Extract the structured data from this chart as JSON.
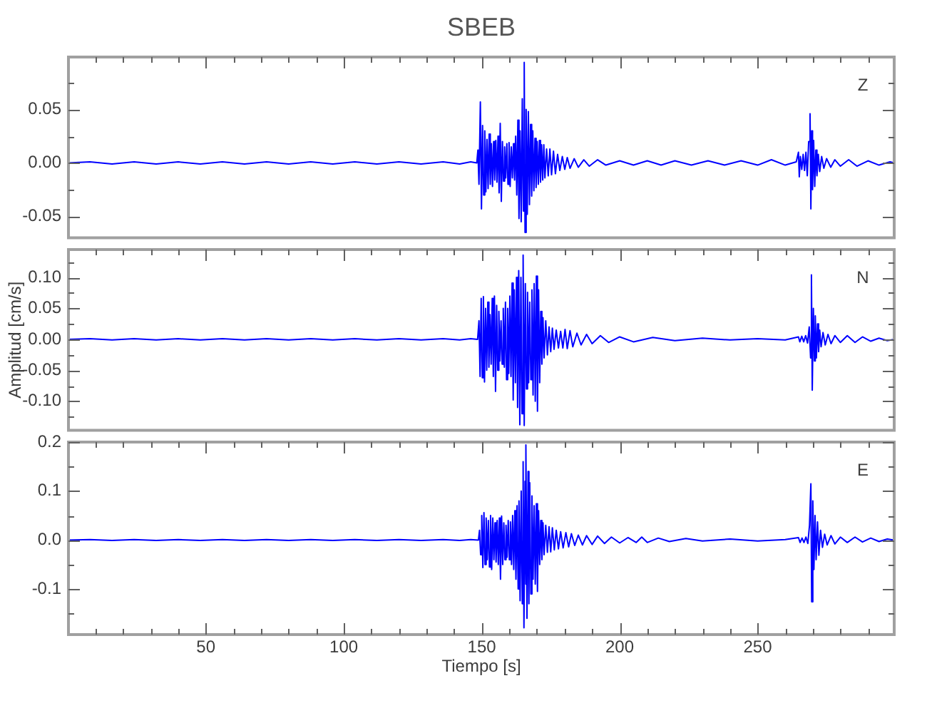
{
  "chart_data": [
    {
      "type": "line",
      "title": "SBEB",
      "annotations": [
        "Z"
      ],
      "tick_labels": "y",
      "xlim": [
        0.2,
        299.5
      ],
      "ylim": [
        -0.07,
        0.099
      ],
      "xticks": [
        {
          "value": 10,
          "label": null
        },
        {
          "value": 20,
          "label": null
        },
        {
          "value": 30,
          "label": null
        },
        {
          "value": 40,
          "label": null
        },
        50,
        {
          "value": 60,
          "label": null
        },
        {
          "value": 70,
          "label": null
        },
        {
          "value": 80,
          "label": null
        },
        {
          "value": 90,
          "label": null
        },
        100,
        {
          "value": 110,
          "label": null
        },
        {
          "value": 120,
          "label": null
        },
        {
          "value": 130,
          "label": null
        },
        {
          "value": 140,
          "label": null
        },
        150,
        {
          "value": 160,
          "label": null
        },
        {
          "value": 170,
          "label": null
        },
        {
          "value": 180,
          "label": null
        },
        {
          "value": 190,
          "label": null
        },
        200,
        {
          "value": 210,
          "label": null
        },
        {
          "value": 220,
          "label": null
        },
        {
          "value": 230,
          "label": null
        },
        {
          "value": 240,
          "label": null
        },
        250,
        {
          "value": 260,
          "label": null
        },
        {
          "value": 270,
          "label": null
        },
        {
          "value": 280,
          "label": null
        },
        {
          "value": 290,
          "label": null
        }
      ],
      "yticks": [
        -0.05,
        {
          "value": -0.025,
          "label": null
        },
        {
          "value": 0,
          "label": "0.00"
        },
        {
          "value": 0.025,
          "label": null
        },
        0.05,
        {
          "value": 0.075,
          "label": null
        }
      ],
      "series": [
        {
          "color": "#0000ff",
          "x": [
            0.2,
            8,
            16,
            24,
            32,
            40,
            48,
            56,
            64,
            72,
            80,
            88,
            96,
            104,
            112,
            120,
            128,
            136,
            142,
            146,
            148.2,
            148.6,
            149.0,
            149.5,
            149.9,
            150.3,
            150.7,
            151.1,
            151.5,
            151.9,
            152.3,
            152.7,
            153.1,
            153.5,
            153.9,
            154.3,
            154.7,
            155.1,
            155.5,
            155.9,
            156.3,
            156.7,
            157.1,
            157.5,
            157.9,
            158.3,
            158.7,
            159.1,
            159.5,
            159.9,
            160.3,
            160.7,
            161.1,
            161.5,
            161.9,
            162.3,
            162.7,
            163.1,
            163.5,
            163.9,
            164.3,
            164.7,
            165.1,
            165.4,
            165.7,
            166.1,
            166.5,
            166.9,
            167.3,
            167.7,
            168.1,
            168.5,
            168.9,
            169.3,
            169.7,
            170.1,
            170.5,
            170.9,
            171.3,
            171.7,
            172.1,
            172.5,
            172.9,
            173.5,
            174.1,
            174.7,
            175.3,
            176,
            176.7,
            177.5,
            178.3,
            179.2,
            180.1,
            181,
            182,
            183.5,
            185,
            187,
            189,
            192,
            195,
            200,
            205,
            210,
            215,
            220,
            226,
            232,
            238,
            244,
            250,
            255,
            260,
            264,
            264.8,
            265.1,
            265.5,
            266,
            266.5,
            267,
            267.5,
            268,
            268.5,
            269,
            269.3,
            269.6,
            269.9,
            270.3,
            270.7,
            271.1,
            271.5,
            272,
            272.5,
            273.2,
            274,
            275,
            276.5,
            278,
            280,
            283,
            286,
            290,
            294,
            298,
            299.5
          ],
          "values": [
            0,
            0.001,
            -0.001,
            0.001,
            -0.001,
            0.001,
            -0.001,
            0.001,
            -0.001,
            0.001,
            -0.001,
            0.001,
            -0.001,
            0.001,
            -0.001,
            0.001,
            -0.001,
            0.001,
            -0.001,
            0.001,
            0,
            0.012,
            -0.02,
            0.057,
            -0.043,
            0.035,
            -0.03,
            0.03,
            -0.027,
            0.022,
            -0.024,
            0.027,
            -0.02,
            0.018,
            -0.022,
            0.02,
            -0.016,
            0.021,
            -0.018,
            0.025,
            -0.028,
            0.037,
            -0.036,
            0.02,
            -0.017,
            0.015,
            -0.014,
            0.018,
            -0.02,
            0.019,
            -0.022,
            0.015,
            -0.014,
            0.018,
            -0.016,
            0.025,
            -0.03,
            0.04,
            -0.052,
            0.03,
            -0.055,
            0.06,
            -0.045,
            0.094,
            -0.065,
            0.05,
            -0.048,
            0.048,
            -0.039,
            0.036,
            -0.031,
            0.03,
            -0.026,
            0.023,
            -0.023,
            0.02,
            -0.02,
            0.021,
            -0.018,
            0.017,
            -0.016,
            0.017,
            -0.014,
            0.013,
            -0.012,
            0.013,
            -0.011,
            0.011,
            -0.01,
            0.008,
            -0.007,
            0.006,
            -0.006,
            0.005,
            -0.005,
            0.004,
            -0.004,
            0.003,
            -0.003,
            0.003,
            -0.002,
            0.002,
            -0.002,
            0.002,
            -0.002,
            0.002,
            -0.002,
            0.002,
            -0.002,
            0.002,
            -0.002,
            0.003,
            -0.002,
            0.001,
            0.01,
            -0.013,
            0.006,
            -0.006,
            0.008,
            -0.007,
            0.01,
            -0.012,
            0.02,
            0.046,
            -0.043,
            0.03,
            -0.025,
            0.021,
            -0.022,
            0.012,
            -0.012,
            0.008,
            -0.008,
            0.006,
            -0.005,
            0.004,
            -0.004,
            0.003,
            -0.003,
            0.003,
            -0.003,
            0.002,
            -0.002,
            0.001,
            0
          ]
        }
      ]
    },
    {
      "type": "line",
      "ylabel": "Amplitud [cm/s]",
      "annotations": [
        "N"
      ],
      "tick_labels": "y",
      "xlim": [
        0.2,
        299.5
      ],
      "ylim": [
        -0.147,
        0.145
      ],
      "xticks": [
        {
          "value": 10,
          "label": null
        },
        {
          "value": 20,
          "label": null
        },
        {
          "value": 30,
          "label": null
        },
        {
          "value": 40,
          "label": null
        },
        50,
        {
          "value": 60,
          "label": null
        },
        {
          "value": 70,
          "label": null
        },
        {
          "value": 80,
          "label": null
        },
        {
          "value": 90,
          "label": null
        },
        100,
        {
          "value": 110,
          "label": null
        },
        {
          "value": 120,
          "label": null
        },
        {
          "value": 130,
          "label": null
        },
        {
          "value": 140,
          "label": null
        },
        150,
        {
          "value": 160,
          "label": null
        },
        {
          "value": 170,
          "label": null
        },
        {
          "value": 180,
          "label": null
        },
        {
          "value": 190,
          "label": null
        },
        200,
        {
          "value": 210,
          "label": null
        },
        {
          "value": 220,
          "label": null
        },
        {
          "value": 230,
          "label": null
        },
        {
          "value": 240,
          "label": null
        },
        250,
        {
          "value": 260,
          "label": null
        },
        {
          "value": 270,
          "label": null
        },
        {
          "value": 280,
          "label": null
        },
        {
          "value": 290,
          "label": null
        }
      ],
      "yticks": [
        {
          "value": -0.125,
          "label": null
        },
        {
          "value": -0.1,
          "label": "-0.10"
        },
        {
          "value": -0.075,
          "label": null
        },
        -0.05,
        {
          "value": -0.025,
          "label": null
        },
        {
          "value": 0,
          "label": "0.00"
        },
        {
          "value": 0.025,
          "label": null
        },
        0.05,
        {
          "value": 0.075,
          "label": null
        },
        {
          "value": 0.1,
          "label": "0.10"
        },
        {
          "value": 0.125,
          "label": null
        }
      ],
      "series": [
        {
          "color": "#0000ff",
          "x": [
            0.2,
            8,
            16,
            24,
            32,
            40,
            48,
            56,
            64,
            72,
            80,
            88,
            96,
            104,
            112,
            120,
            128,
            136,
            142,
            146,
            148.5,
            149.0,
            149.4,
            149.8,
            150.2,
            150.6,
            151.0,
            151.4,
            151.8,
            152.2,
            152.6,
            153.0,
            153.4,
            153.8,
            154.2,
            154.6,
            155.0,
            155.4,
            155.8,
            156.2,
            156.6,
            157.0,
            157.4,
            157.8,
            158.2,
            158.6,
            159.0,
            159.4,
            159.8,
            160.2,
            160.6,
            161.0,
            161.4,
            161.8,
            162.2,
            162.6,
            163.0,
            163.4,
            163.8,
            164.2,
            164.6,
            165.0,
            165.4,
            165.8,
            166.2,
            166.6,
            167.0,
            167.4,
            167.8,
            168.2,
            168.6,
            169.0,
            169.4,
            169.8,
            170.2,
            170.6,
            171.0,
            171.4,
            171.8,
            172.2,
            172.6,
            173.2,
            173.8,
            174.4,
            175,
            175.6,
            176.2,
            177,
            177.8,
            178.6,
            179.4,
            180.2,
            181,
            182,
            183,
            184.5,
            186,
            188,
            190,
            193,
            196,
            200,
            205,
            212,
            220,
            230,
            240,
            250,
            260,
            264.8,
            265.3,
            266,
            266.7,
            267.4,
            268.1,
            268.7,
            269.2,
            269.5,
            269.8,
            270.2,
            270.6,
            270.9,
            271.3,
            271.7,
            272.1,
            272.5,
            273,
            273.7,
            274.5,
            275.5,
            276.6,
            278,
            280,
            282.5,
            285.3,
            288,
            291,
            294,
            297,
            299.5
          ],
          "values": [
            0,
            0.001,
            -0.001,
            0.001,
            -0.001,
            0.001,
            -0.001,
            0.001,
            -0.001,
            0.001,
            -0.001,
            0.001,
            -0.001,
            0.001,
            -0.001,
            0.001,
            -0.001,
            0.001,
            -0.001,
            0.001,
            0,
            0.03,
            -0.06,
            0.066,
            -0.062,
            0.069,
            -0.069,
            0.05,
            -0.05,
            0.06,
            -0.045,
            0.04,
            -0.04,
            0.066,
            -0.06,
            0.07,
            -0.084,
            0.055,
            -0.05,
            0.045,
            -0.035,
            0.03,
            -0.04,
            0.05,
            -0.045,
            0.06,
            -0.065,
            0.05,
            -0.055,
            0.07,
            -0.06,
            0.091,
            -0.098,
            0.08,
            -0.07,
            0.1,
            -0.11,
            0.111,
            -0.138,
            0.1,
            -0.12,
            0.136,
            -0.139,
            0.09,
            -0.08,
            0.076,
            -0.07,
            0.06,
            -0.065,
            0.08,
            -0.09,
            0.09,
            -0.1,
            0.102,
            -0.116,
            0.08,
            -0.07,
            0.045,
            -0.04,
            0.035,
            -0.03,
            0.03,
            -0.025,
            0.02,
            -0.02,
            0.018,
            -0.016,
            0.015,
            -0.014,
            0.013,
            -0.014,
            0.016,
            -0.015,
            0.014,
            -0.012,
            0.01,
            -0.009,
            0.008,
            -0.007,
            0.006,
            -0.005,
            0.004,
            -0.004,
            0.003,
            -0.002,
            0.002,
            -0.001,
            0.001,
            -0.001,
            0.004,
            -0.004,
            0.005,
            -0.004,
            0.006,
            -0.006,
            0.02,
            -0.03,
            0.104,
            -0.082,
            0.05,
            -0.035,
            0.038,
            -0.03,
            0.025,
            -0.02,
            0.015,
            -0.012,
            0.011,
            -0.009,
            0.008,
            -0.007,
            0.006,
            -0.005,
            0.006,
            -0.005,
            0.004,
            -0.003,
            0.002,
            -0.002,
            0
          ]
        }
      ]
    },
    {
      "type": "line",
      "xlabel": "Tiempo [s]",
      "annotations": [
        "E"
      ],
      "xlim": [
        0.2,
        299.5
      ],
      "ylim": [
        -0.193,
        0.2
      ],
      "xticks": [
        {
          "value": 10,
          "label": null
        },
        {
          "value": 20,
          "label": null
        },
        {
          "value": 30,
          "label": null
        },
        {
          "value": 40,
          "label": null
        },
        50,
        {
          "value": 60,
          "label": null
        },
        {
          "value": 70,
          "label": null
        },
        {
          "value": 80,
          "label": null
        },
        {
          "value": 90,
          "label": null
        },
        100,
        {
          "value": 110,
          "label": null
        },
        {
          "value": 120,
          "label": null
        },
        {
          "value": 130,
          "label": null
        },
        {
          "value": 140,
          "label": null
        },
        150,
        {
          "value": 160,
          "label": null
        },
        {
          "value": 170,
          "label": null
        },
        {
          "value": 180,
          "label": null
        },
        {
          "value": 190,
          "label": null
        },
        200,
        {
          "value": 210,
          "label": null
        },
        {
          "value": 220,
          "label": null
        },
        {
          "value": 230,
          "label": null
        },
        {
          "value": 240,
          "label": null
        },
        250,
        {
          "value": 260,
          "label": null
        },
        {
          "value": 270,
          "label": null
        },
        {
          "value": 280,
          "label": null
        },
        {
          "value": 290,
          "label": null
        }
      ],
      "yticks": [
        {
          "value": -0.15,
          "label": null
        },
        -0.1,
        {
          "value": -0.05,
          "label": null
        },
        {
          "value": 0,
          "label": "0.0"
        },
        {
          "value": 0.05,
          "label": null
        },
        0.1,
        {
          "value": 0.15,
          "label": null
        },
        0.2
      ],
      "series": [
        {
          "color": "#0000ff",
          "x": [
            0.2,
            8,
            16,
            24,
            32,
            40,
            48,
            56,
            64,
            72,
            80,
            88,
            96,
            104,
            112,
            120,
            128,
            136,
            142,
            146,
            148.8,
            149.2,
            149.6,
            150.0,
            150.4,
            150.8,
            151.2,
            151.6,
            152.0,
            152.4,
            152.8,
            153.2,
            153.6,
            154.0,
            154.4,
            154.8,
            155.2,
            155.6,
            156.0,
            156.4,
            156.8,
            157.2,
            157.6,
            158.0,
            158.4,
            158.8,
            159.2,
            159.6,
            160.0,
            160.4,
            160.8,
            161.2,
            161.6,
            162.0,
            162.4,
            162.8,
            163.2,
            163.5,
            163.9,
            164.3,
            164.7,
            165.0,
            165.3,
            165.7,
            165.9,
            166.1,
            166.4,
            166.8,
            167.1,
            167.4,
            167.8,
            168.2,
            168.6,
            169.0,
            169.4,
            169.8,
            170.2,
            170.6,
            171.0,
            171.4,
            171.8,
            172.2,
            172.6,
            173.2,
            173.8,
            174.4,
            175.0,
            175.6,
            176.3,
            177,
            177.8,
            178.6,
            179.5,
            180.5,
            181.5,
            182.5,
            183.7,
            185,
            186.5,
            188,
            190,
            192,
            194.5,
            197,
            200,
            203,
            206,
            208,
            210,
            214,
            218,
            224,
            230,
            240,
            250,
            260,
            264.8,
            265.4,
            266.1,
            266.8,
            267.5,
            268.2,
            268.8,
            269.3,
            269.6,
            270.0,
            270.4,
            270.8,
            271.2,
            271.7,
            272.2,
            272.8,
            273.5,
            274.3,
            275.2,
            276.6,
            278,
            280,
            282.5,
            285.3,
            288,
            291,
            294,
            297,
            299.5
          ],
          "values": [
            0,
            0.001,
            -0.001,
            0.001,
            -0.001,
            0.001,
            -0.001,
            0.001,
            -0.001,
            0.001,
            -0.001,
            0.001,
            -0.001,
            0.001,
            -0.001,
            0.001,
            -0.001,
            0.001,
            -0.001,
            0.001,
            0,
            0.02,
            -0.03,
            0.05,
            -0.056,
            0.056,
            -0.05,
            0.045,
            -0.04,
            0.04,
            -0.055,
            0.05,
            -0.06,
            0.045,
            -0.04,
            0.035,
            -0.045,
            0.04,
            -0.05,
            0.045,
            -0.08,
            0.049,
            -0.05,
            0.035,
            -0.04,
            0.03,
            -0.035,
            0.04,
            -0.04,
            0.037,
            -0.05,
            0.05,
            -0.06,
            0.06,
            -0.08,
            0.07,
            -0.1,
            0.08,
            -0.124,
            0.1,
            -0.13,
            0.16,
            -0.179,
            0.12,
            -0.09,
            0.194,
            -0.16,
            0.14,
            -0.13,
            0.117,
            -0.11,
            0.09,
            -0.08,
            0.07,
            -0.09,
            0.074,
            -0.105,
            0.06,
            -0.05,
            0.04,
            -0.04,
            0.035,
            -0.03,
            0.03,
            -0.025,
            0.027,
            -0.024,
            0.025,
            -0.02,
            0.02,
            -0.018,
            0.017,
            -0.016,
            0.015,
            -0.014,
            0.013,
            -0.011,
            0.01,
            -0.01,
            0.009,
            -0.009,
            0.008,
            -0.007,
            0.006,
            -0.006,
            0.005,
            -0.005,
            0.006,
            -0.005,
            0.004,
            -0.003,
            0.003,
            -0.002,
            0.002,
            -0.002,
            0.001,
            0.005,
            -0.005,
            0.004,
            -0.005,
            0.006,
            -0.007,
            0.03,
            0.115,
            -0.126,
            0.08,
            -0.06,
            0.05,
            -0.04,
            0.037,
            -0.031,
            0.02,
            -0.015,
            0.012,
            -0.01,
            0.009,
            -0.008,
            0.006,
            -0.005,
            0.006,
            -0.004,
            0.004,
            -0.003,
            0.002,
            0
          ]
        }
      ]
    }
  ]
}
